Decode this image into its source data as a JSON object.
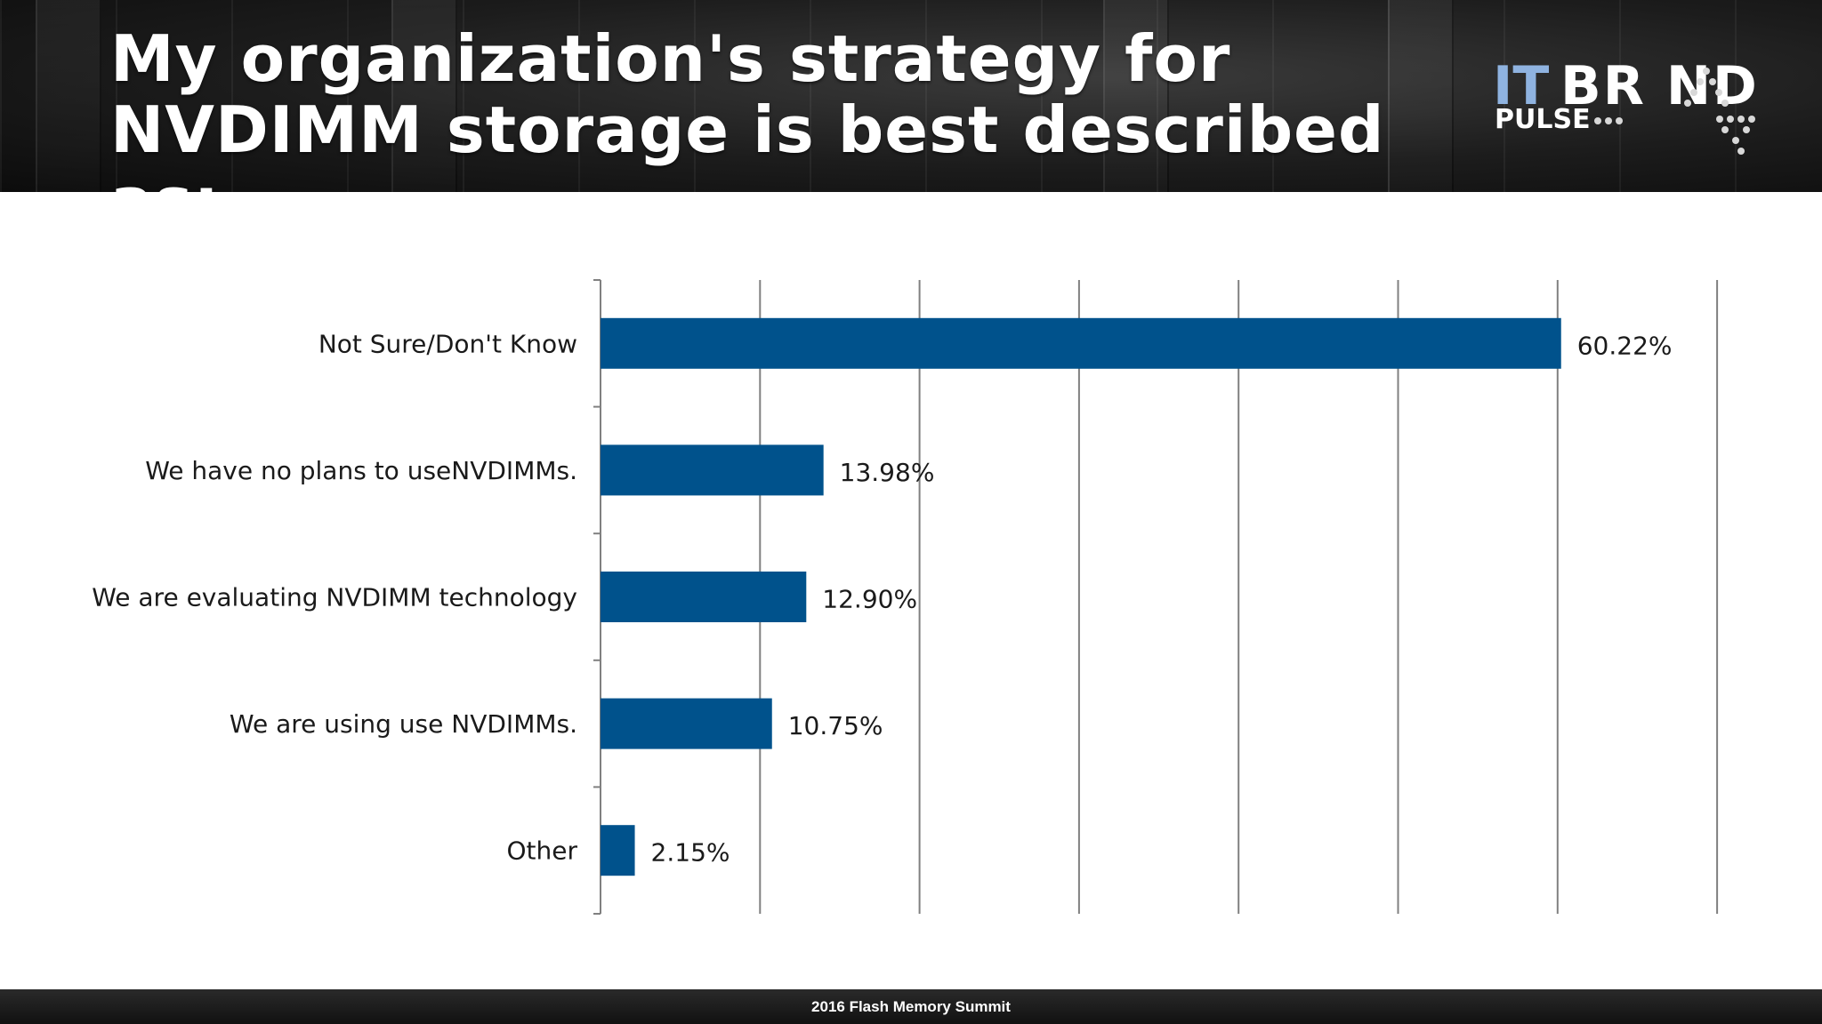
{
  "slide": {
    "title": "My organization's strategy for NVDIMM storage is best described as:",
    "footer": "2016 Flash Memory Summit"
  },
  "logo": {
    "it": "IT",
    "brand": "BR ND",
    "pulse": "PULSE"
  },
  "colors": {
    "bar": "#00528c",
    "grid": "#808080",
    "header_bg": "#1c1c1c",
    "logo_it": "#8fb3e0"
  },
  "chart_data": {
    "type": "bar",
    "orientation": "horizontal",
    "categories": [
      "Not Sure/Don't Know",
      "We have no plans to useNVDIMMs.",
      "We are evaluating NVDIMM technology",
      "We are using use NVDIMMs.",
      "Other"
    ],
    "values": [
      60.22,
      13.98,
      12.9,
      10.75,
      2.15
    ],
    "data_labels": [
      "60.22%",
      "13.98%",
      "12.90%",
      "10.75%",
      "2.15%"
    ],
    "xlim": [
      0,
      70
    ],
    "x_tick_step": 10,
    "grid": true,
    "legend": "none"
  }
}
